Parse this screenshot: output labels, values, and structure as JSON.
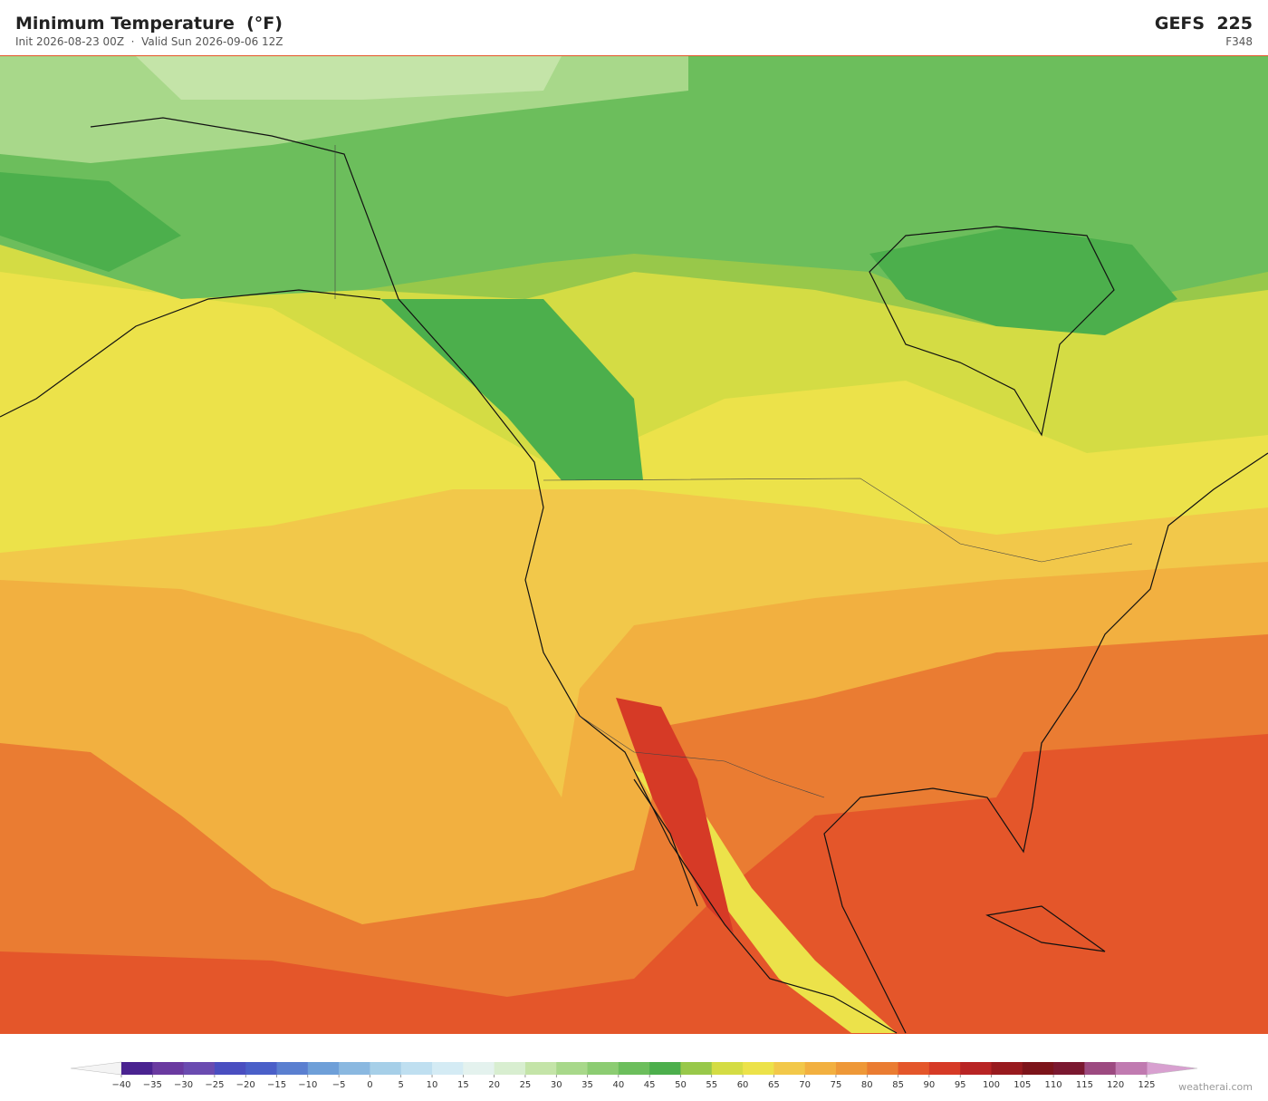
{
  "header": {
    "title": "Minimum Temperature  (°F)",
    "subtitle": "Init 2026-08-23 00Z  ·  Valid Sun 2026-09-06 12Z",
    "model": "GEFS  225",
    "forecast_hour": "F348"
  },
  "colorbar": {
    "ticks": [
      {
        "value": -40,
        "label": "−40"
      },
      {
        "value": -35,
        "label": "−35"
      },
      {
        "value": -30,
        "label": "−30"
      },
      {
        "value": -25,
        "label": "−25"
      },
      {
        "value": -20,
        "label": "−20"
      },
      {
        "value": -15,
        "label": "−15"
      },
      {
        "value": -10,
        "label": "−10"
      },
      {
        "value": -5,
        "label": "−5"
      },
      0,
      5,
      10,
      15,
      20,
      25,
      30,
      35,
      40,
      45,
      50,
      55,
      60,
      65,
      70,
      75,
      80,
      85,
      90,
      95,
      100,
      105,
      110,
      115,
      120,
      125
    ],
    "colors": [
      "#4a2390",
      "#6a3aa0",
      "#6a4bb0",
      "#4a4ec0",
      "#4a5fc8",
      "#5a7fd0",
      "#6e9fd8",
      "#8ab8e0",
      "#a6cfe8",
      "#bfdff0",
      "#d4ebf4",
      "#e4f2ee",
      "#d8eed0",
      "#c4e4a8",
      "#a8d88a",
      "#8ccc72",
      "#6cbe5c",
      "#4caf4c",
      "#98c84a",
      "#d4dc44",
      "#ece24a",
      "#f2c84a",
      "#f2b040",
      "#ee9838",
      "#ea7c32",
      "#e4562a",
      "#d63a26",
      "#b82424",
      "#981a1e",
      "#7c141a",
      "#7a1830",
      "#9c4a80",
      "#c07ab0"
    ]
  },
  "footer": {
    "watermark": "weatherai.com"
  }
}
